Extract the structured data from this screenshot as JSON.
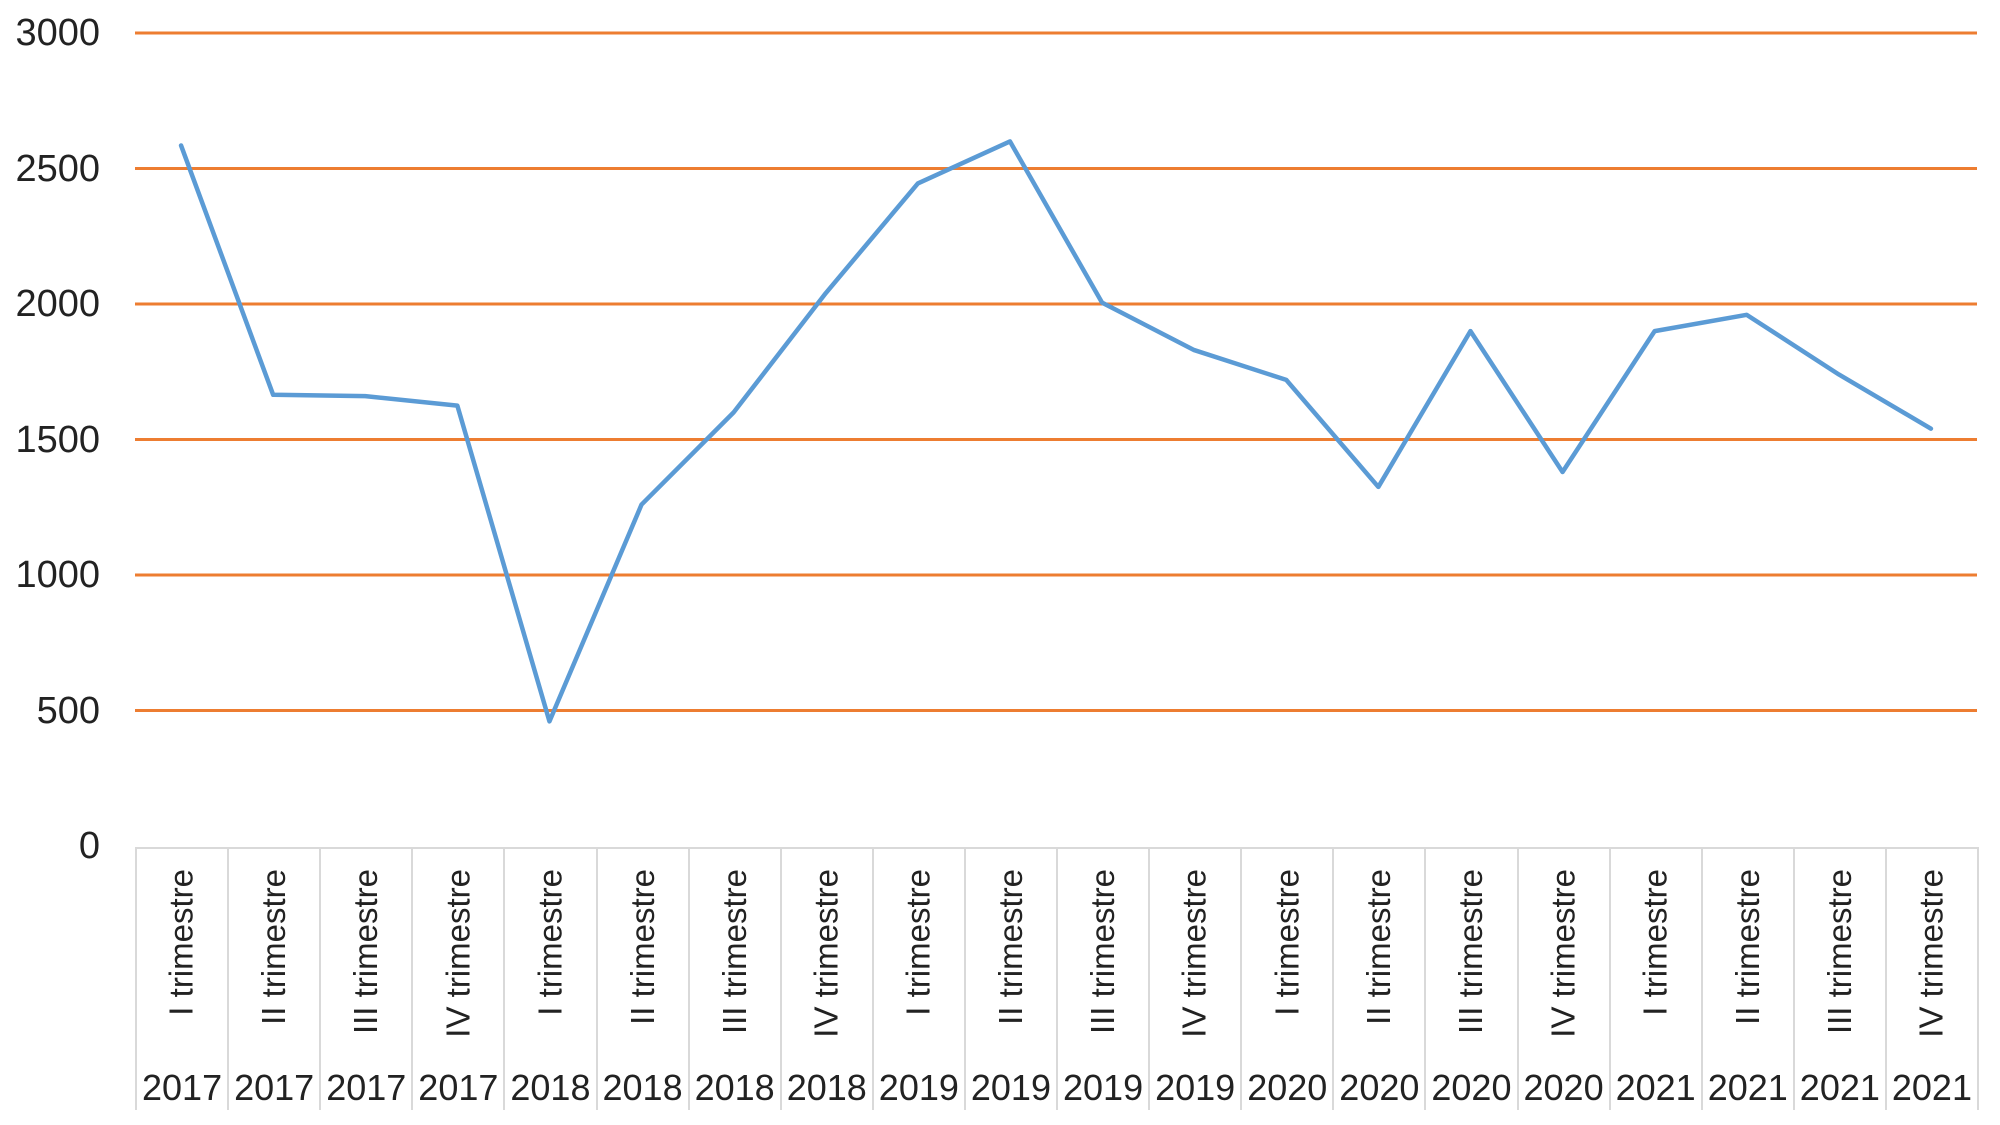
{
  "chart_data": {
    "type": "line",
    "title": "",
    "xlabel": "",
    "ylabel": "",
    "legend": "none",
    "grid": true,
    "gridline_color": "#ED7D31",
    "axis_text_color": "#222222",
    "cell_border_color": "#D9D9D9",
    "ylim": [
      0,
      3000
    ],
    "y_ticks": [
      0,
      500,
      1000,
      1500,
      2000,
      2500,
      3000
    ],
    "categories": [
      {
        "quarter": "I trimestre",
        "year": "2017"
      },
      {
        "quarter": "II trimestre",
        "year": "2017"
      },
      {
        "quarter": "III trimestre",
        "year": "2017"
      },
      {
        "quarter": "IV trimestre",
        "year": "2017"
      },
      {
        "quarter": "I trimestre",
        "year": "2018"
      },
      {
        "quarter": "II trimestre",
        "year": "2018"
      },
      {
        "quarter": "III trimestre",
        "year": "2018"
      },
      {
        "quarter": "IV trimestre",
        "year": "2018"
      },
      {
        "quarter": "I trimestre",
        "year": "2019"
      },
      {
        "quarter": "II trimestre",
        "year": "2019"
      },
      {
        "quarter": "III trimestre",
        "year": "2019"
      },
      {
        "quarter": "IV trimestre",
        "year": "2019"
      },
      {
        "quarter": "I trimestre",
        "year": "2020"
      },
      {
        "quarter": "II trimestre",
        "year": "2020"
      },
      {
        "quarter": "III trimestre",
        "year": "2020"
      },
      {
        "quarter": "IV trimestre",
        "year": "2020"
      },
      {
        "quarter": "I trimestre",
        "year": "2021"
      },
      {
        "quarter": "II trimestre",
        "year": "2021"
      },
      {
        "quarter": "III trimestre",
        "year": "2021"
      },
      {
        "quarter": "IV trimestre",
        "year": "2021"
      }
    ],
    "series": [
      {
        "name": "",
        "color": "#5B9BD5",
        "values": [
          2585,
          1665,
          1660,
          1625,
          460,
          1260,
          1600,
          2040,
          2445,
          2600,
          2005,
          1830,
          1720,
          1325,
          1900,
          1380,
          1900,
          1960,
          1740,
          1540
        ]
      }
    ]
  }
}
